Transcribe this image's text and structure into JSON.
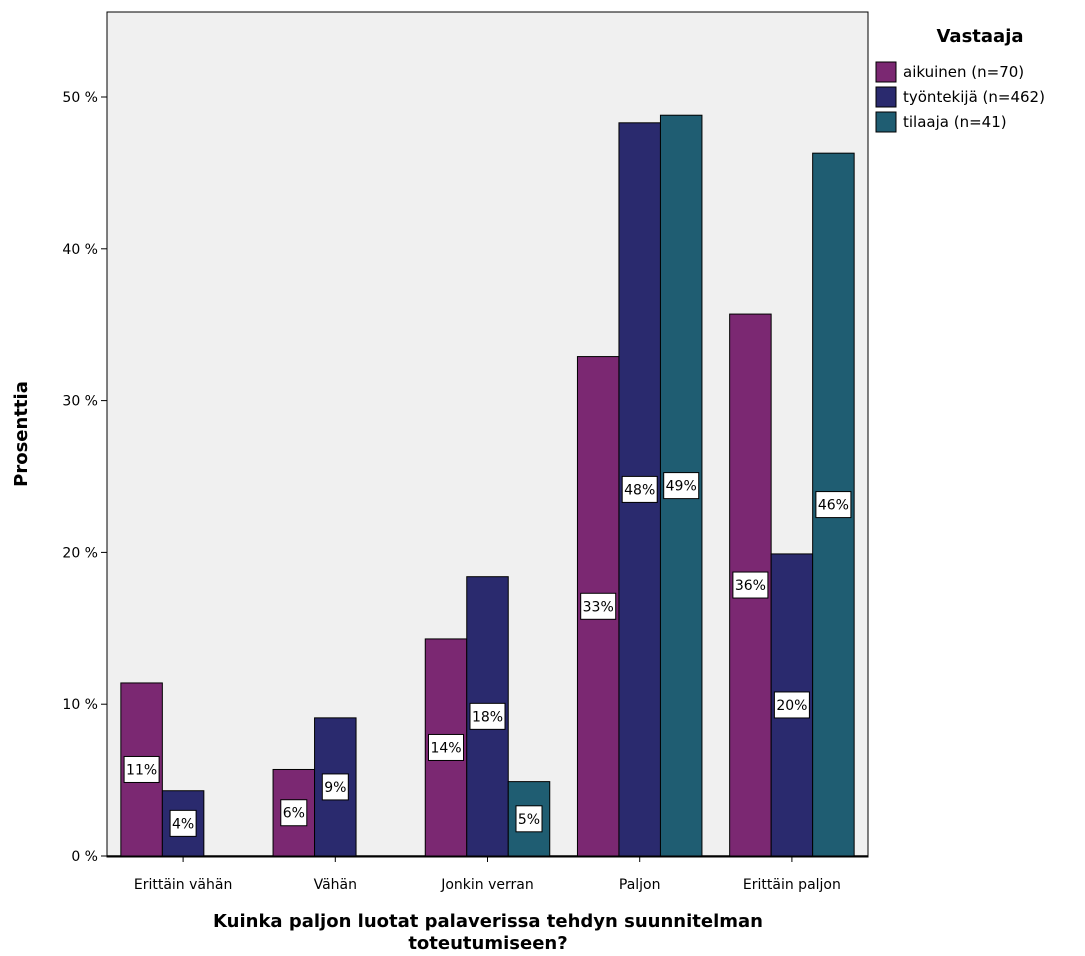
{
  "chart_data": {
    "type": "bar",
    "ylabel": "Prosenttia",
    "xlabel_lines": [
      "Kuinka paljon luotat palaverissa tehdyn suunnitelman",
      "toteutumiseen?"
    ],
    "ylim": [
      0,
      56
    ],
    "yticks": [
      0,
      10,
      20,
      30,
      40,
      50
    ],
    "ytick_labels": [
      "0 %",
      "10 %",
      "20 %",
      "30 %",
      "40 %",
      "50 %"
    ],
    "categories": [
      "Erittäin vähän",
      "Vähän",
      "Jonkin verran",
      "Paljon",
      "Erittäin paljon"
    ],
    "legend": {
      "title": "Vastaaja",
      "placement": "right"
    },
    "background": "#f0f0f0",
    "series": [
      {
        "name": "aikuinen (n=70)",
        "color": "#7b2872",
        "values": [
          11.4,
          5.7,
          14.3,
          32.9,
          35.7
        ],
        "labels": [
          "11%",
          "6%",
          "14%",
          "33%",
          "36%"
        ]
      },
      {
        "name": "työntekijä (n=462)",
        "color": "#2a2a6e",
        "values": [
          4.3,
          9.1,
          18.4,
          48.3,
          19.9
        ],
        "labels": [
          "4%",
          "9%",
          "18%",
          "48%",
          "20%"
        ]
      },
      {
        "name": "tilaaja (n=41)",
        "color": "#1f5d72",
        "values": [
          0,
          0,
          4.9,
          48.8,
          46.3
        ],
        "labels": [
          "",
          "",
          "5%",
          "49%",
          "46%"
        ]
      }
    ]
  }
}
